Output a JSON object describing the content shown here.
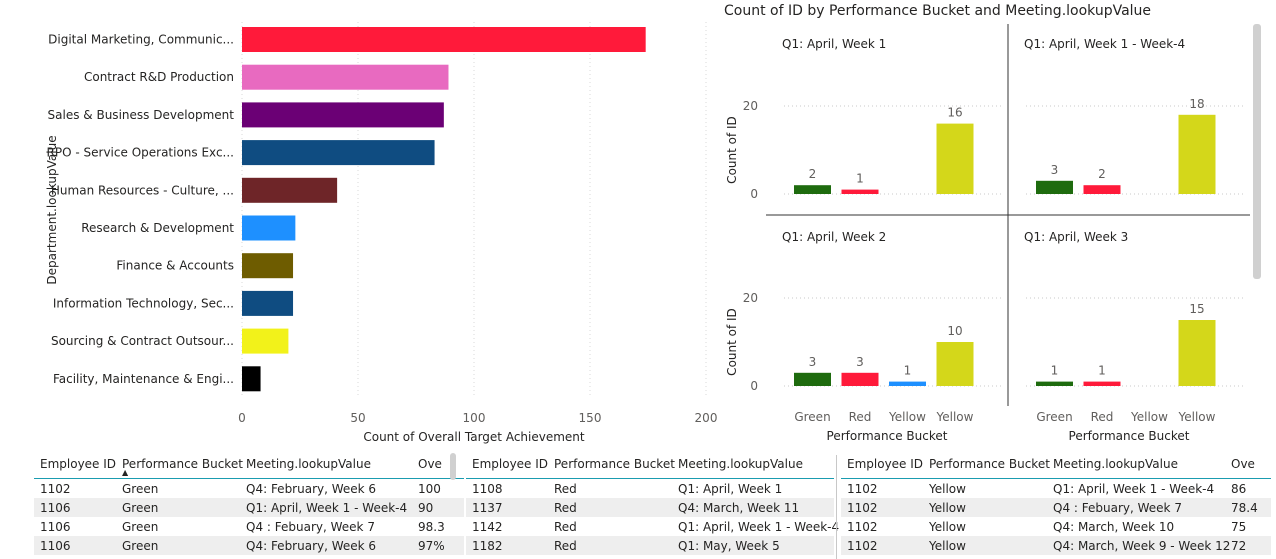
{
  "colors": {
    "green": "#1e6b0e",
    "red": "#ff1a3a",
    "blue": "#1e90ff",
    "yellow": "#d4d71a",
    "header_line": "#1a9cb0",
    "scrollbar": "#d0d0d0"
  },
  "chart_data": [
    {
      "type": "bar",
      "orientation": "horizontal",
      "title": "",
      "categories": [
        "Digital Marketing, Communic...",
        "Contract R&D Production",
        "Sales & Business Development",
        "RPO - Service Operations Exc...",
        "Human Resources - Culture, ...",
        "Research & Development",
        "Finance & Accounts",
        "Information Technology, Sec...",
        "Sourcing & Contract Outsour...",
        "Facility, Maintenance & Engi..."
      ],
      "values": [
        174,
        89,
        87,
        83,
        41,
        23,
        22,
        22,
        20,
        8
      ],
      "colors": [
        "#ff1a3a",
        "#e86ac0",
        "#6b0075",
        "#0f4c81",
        "#6e2528",
        "#1e90ff",
        "#6e5c00",
        "#0f4c81",
        "#f2f21a",
        "#000000"
      ],
      "xlabel": "Count of Overall Target Achievement",
      "ylabel": "Department.lookupValue",
      "xlim": [
        0,
        200
      ],
      "xticks": [
        "0",
        "50",
        "100",
        "150",
        "200"
      ]
    },
    {
      "type": "bar",
      "title": "Count of ID by Performance Bucket and Meeting.lookupValue",
      "xlabel": "Performance Bucket",
      "ylabel": "Count of ID",
      "ylim": [
        0,
        20
      ],
      "yticks": [
        "0",
        "20"
      ],
      "categories": [
        "Green",
        "Red",
        "Yellow",
        "Yellow"
      ],
      "panels": [
        {
          "title": "Q1: April, Week 1",
          "values": [
            2,
            1,
            null,
            16
          ]
        },
        {
          "title": "Q1: April, Week 1 - Week-4",
          "values": [
            3,
            2,
            null,
            18
          ]
        },
        {
          "title": "Q1: April, Week 2",
          "values": [
            3,
            3,
            1,
            10
          ]
        },
        {
          "title": "Q1: April, Week 3",
          "values": [
            1,
            1,
            null,
            15
          ]
        }
      ]
    }
  ],
  "tables": [
    {
      "columns": [
        "Employee ID",
        "Performance Bucket",
        "Meeting.lookupValue",
        "Ove"
      ],
      "rows": [
        [
          "1102",
          "Green",
          "Q4: February, Week 6",
          "100"
        ],
        [
          "1106",
          "Green",
          "Q1: April, Week 1 - Week-4",
          "90"
        ],
        [
          "1106",
          "Green",
          "Q4 : Febuary, Week 7",
          "98.3"
        ],
        [
          "1106",
          "Green",
          "Q4: February, Week 6",
          "97%"
        ]
      ]
    },
    {
      "columns": [
        "Employee ID",
        "Performance Bucket",
        "Meeting.lookupValue"
      ],
      "rows": [
        [
          "1108",
          "Red",
          "Q1: April, Week 1"
        ],
        [
          "1137",
          "Red",
          "Q4: March, Week 11"
        ],
        [
          "1142",
          "Red",
          "Q1: April, Week 1 - Week-4"
        ],
        [
          "1182",
          "Red",
          "Q1: May, Week 5"
        ]
      ]
    },
    {
      "columns": [
        "Employee ID",
        "Performance Bucket",
        "Meeting.lookupValue",
        "Ove"
      ],
      "rows": [
        [
          "1102",
          "Yellow",
          "Q1: April, Week 1 - Week-4",
          "86"
        ],
        [
          "1102",
          "Yellow",
          "Q4 : Febuary, Week 7",
          "78.4"
        ],
        [
          "1102",
          "Yellow",
          "Q4: March, Week 10",
          "75"
        ],
        [
          "1102",
          "Yellow",
          "Q4: March, Week 9 - Week 12",
          "72"
        ]
      ]
    }
  ]
}
